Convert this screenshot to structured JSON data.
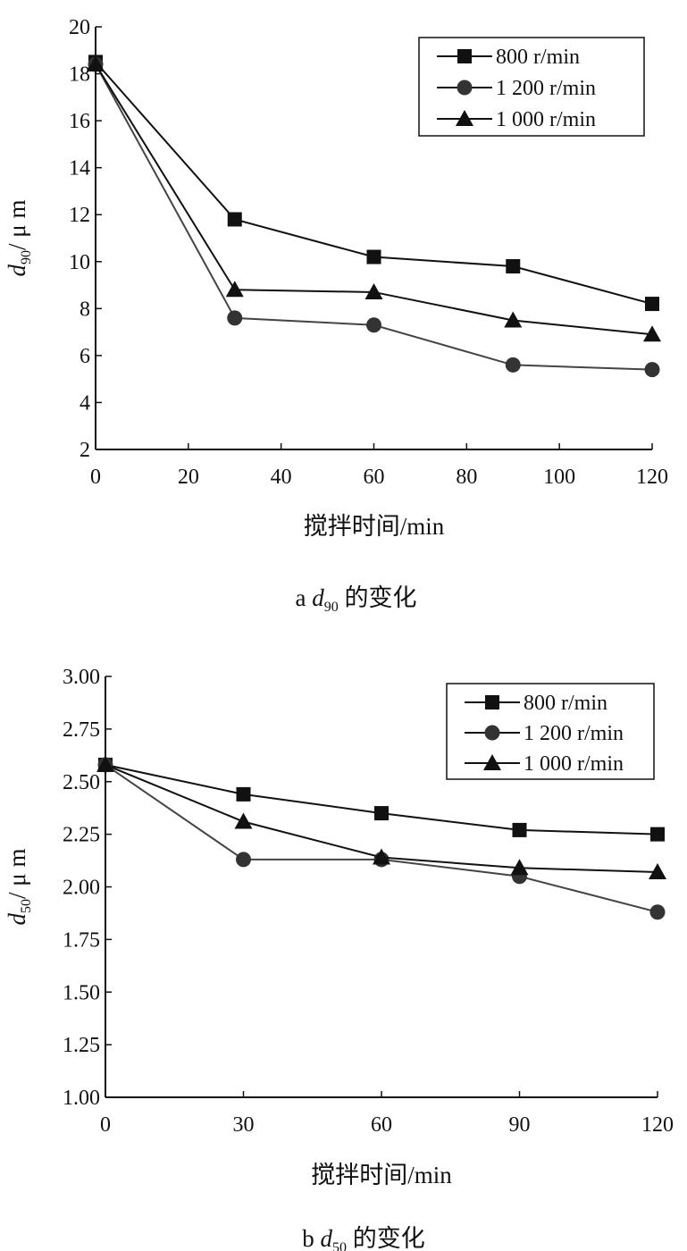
{
  "chart_data": [
    {
      "type": "line",
      "caption": "a d90 的变化",
      "caption_prefix": "a ",
      "caption_var": "d",
      "caption_sub": "90",
      "caption_suffix": " 的变化",
      "xlabel": "搅拌时间/min",
      "ylabel_var": "d",
      "ylabel_sub": "90",
      "ylabel_unit": "/ μ m",
      "xlim": [
        0,
        120
      ],
      "ylim": [
        2,
        20
      ],
      "xticks": [
        0,
        20,
        40,
        60,
        80,
        100,
        120
      ],
      "yticks": [
        2,
        4,
        6,
        8,
        10,
        12,
        14,
        16,
        18,
        20
      ],
      "ytick_labels": [
        "2",
        "4",
        "6",
        "8",
        "10",
        "12",
        "14",
        "16",
        "18",
        "20"
      ],
      "legend_position": "top-right",
      "x": [
        0,
        30,
        60,
        90,
        120
      ],
      "series": [
        {
          "name": "800 r/min",
          "marker": "square",
          "values": [
            18.5,
            11.8,
            10.2,
            9.8,
            8.2
          ]
        },
        {
          "name": "1 200 r/min",
          "marker": "circle",
          "values": [
            18.4,
            7.6,
            7.3,
            5.6,
            5.4
          ]
        },
        {
          "name": "1 000 r/min",
          "marker": "triangle",
          "values": [
            18.4,
            8.8,
            8.7,
            7.5,
            6.9
          ]
        }
      ]
    },
    {
      "type": "line",
      "caption": "b d50 的变化",
      "caption_prefix": "b ",
      "caption_var": "d",
      "caption_sub": "50",
      "caption_suffix": " 的变化",
      "xlabel": "搅拌时间/min",
      "ylabel_var": "d",
      "ylabel_sub": "50",
      "ylabel_unit": "/ μ m",
      "xlim": [
        0,
        120
      ],
      "ylim": [
        1.0,
        3.0
      ],
      "xticks": [
        0,
        30,
        60,
        90,
        120
      ],
      "yticks": [
        1.0,
        1.25,
        1.5,
        1.75,
        2.0,
        2.25,
        2.5,
        2.75,
        3.0
      ],
      "ytick_labels": [
        "1.00",
        "1.25",
        "1.50",
        "1.75",
        "2.00",
        "2.25",
        "2.50",
        "2.75",
        "3.00"
      ],
      "legend_position": "top-right",
      "x": [
        0,
        30,
        60,
        90,
        120
      ],
      "series": [
        {
          "name": "800 r/min",
          "marker": "square",
          "values": [
            2.58,
            2.44,
            2.35,
            2.27,
            2.25
          ]
        },
        {
          "name": "1 200 r/min",
          "marker": "circle",
          "values": [
            2.58,
            2.13,
            2.13,
            2.05,
            1.88
          ]
        },
        {
          "name": "1 000 r/min",
          "marker": "triangle",
          "values": [
            2.58,
            2.31,
            2.14,
            2.09,
            2.07
          ]
        }
      ]
    }
  ]
}
